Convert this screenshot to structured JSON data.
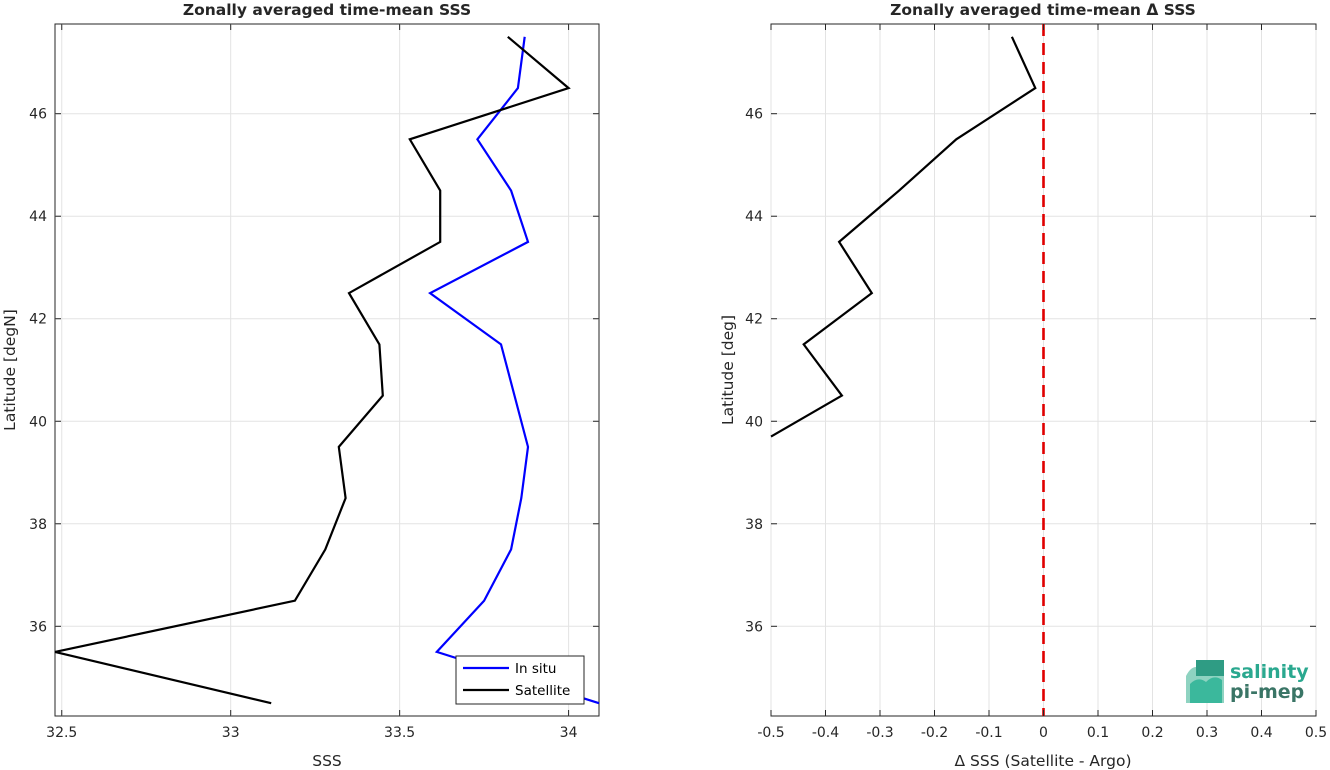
{
  "chart_data": [
    {
      "type": "line",
      "title": "Zonally averaged time-mean SSS",
      "xlabel": "SSS",
      "ylabel": "Latitude [degN]",
      "xlim": [
        32.48,
        34.09
      ],
      "ylim": [
        34.25,
        47.75
      ],
      "xticks": [
        32.5,
        33,
        33.5,
        34
      ],
      "xtick_labels": [
        "32.5",
        "33",
        "33.5",
        "34"
      ],
      "yticks": [
        36,
        38,
        40,
        42,
        44,
        46
      ],
      "ytick_labels": [
        "36",
        "38",
        "40",
        "42",
        "44",
        "46"
      ],
      "grid": true,
      "legend_placement": "bottom-right",
      "series": [
        {
          "name": "In situ",
          "color": "#0000ff",
          "points": [
            [
              34.09,
              34.5
            ],
            [
              33.61,
              35.5
            ],
            [
              33.75,
              36.5
            ],
            [
              33.83,
              37.5
            ],
            [
              33.86,
              38.5
            ],
            [
              33.88,
              39.5
            ],
            [
              33.84,
              40.5
            ],
            [
              33.8,
              41.5
            ],
            [
              33.59,
              42.5
            ],
            [
              33.88,
              43.5
            ],
            [
              33.83,
              44.5
            ],
            [
              33.73,
              45.5
            ],
            [
              33.85,
              46.5
            ],
            [
              33.87,
              47.5
            ]
          ]
        },
        {
          "name": "Satellite",
          "color": "#000000",
          "points": [
            [
              33.12,
              34.5
            ],
            [
              32.48,
              35.5
            ],
            [
              33.19,
              36.5
            ],
            [
              33.28,
              37.5
            ],
            [
              33.34,
              38.5
            ],
            [
              33.32,
              39.5
            ],
            [
              33.45,
              40.5
            ],
            [
              33.44,
              41.5
            ],
            [
              33.35,
              42.5
            ],
            [
              33.62,
              43.5
            ],
            [
              33.62,
              44.5
            ],
            [
              33.53,
              45.5
            ],
            [
              34.0,
              46.5
            ],
            [
              33.82,
              47.5
            ]
          ]
        }
      ]
    },
    {
      "type": "line",
      "title": "Zonally averaged time-mean Δ SSS",
      "xlabel": "Δ SSS (Satellite - Argo)",
      "ylabel": "Latitude [deg]",
      "xlim": [
        -0.5,
        0.5
      ],
      "ylim": [
        34.25,
        47.75
      ],
      "xticks": [
        -0.5,
        -0.4,
        -0.3,
        -0.2,
        -0.1,
        0,
        0.1,
        0.2,
        0.3,
        0.4,
        0.5
      ],
      "xtick_labels": [
        "-0.5",
        "-0.4",
        "-0.3",
        "-0.2",
        "-0.1",
        "0",
        "0.1",
        "0.2",
        "0.3",
        "0.4",
        "0.5"
      ],
      "yticks": [
        36,
        38,
        40,
        42,
        44,
        46
      ],
      "ytick_labels": [
        "36",
        "38",
        "40",
        "42",
        "44",
        "46"
      ],
      "grid": true,
      "series": [
        {
          "color": "#000000",
          "points": [
            [
              -0.5,
              39.7
            ],
            [
              -0.37,
              40.5
            ],
            [
              -0.44,
              41.5
            ],
            [
              -0.315,
              42.5
            ],
            [
              -0.375,
              43.5
            ],
            [
              -0.265,
              44.5
            ],
            [
              -0.16,
              45.5
            ],
            [
              -0.015,
              46.5
            ],
            [
              -0.058,
              47.5
            ]
          ]
        }
      ],
      "reference_line": {
        "x": 0,
        "color": "#e00000",
        "style": "dashed"
      }
    }
  ],
  "logo": {
    "line1": "salinity",
    "line2": "pi-mep",
    "color1": "#2aa88f",
    "color2": "#3a7566"
  }
}
